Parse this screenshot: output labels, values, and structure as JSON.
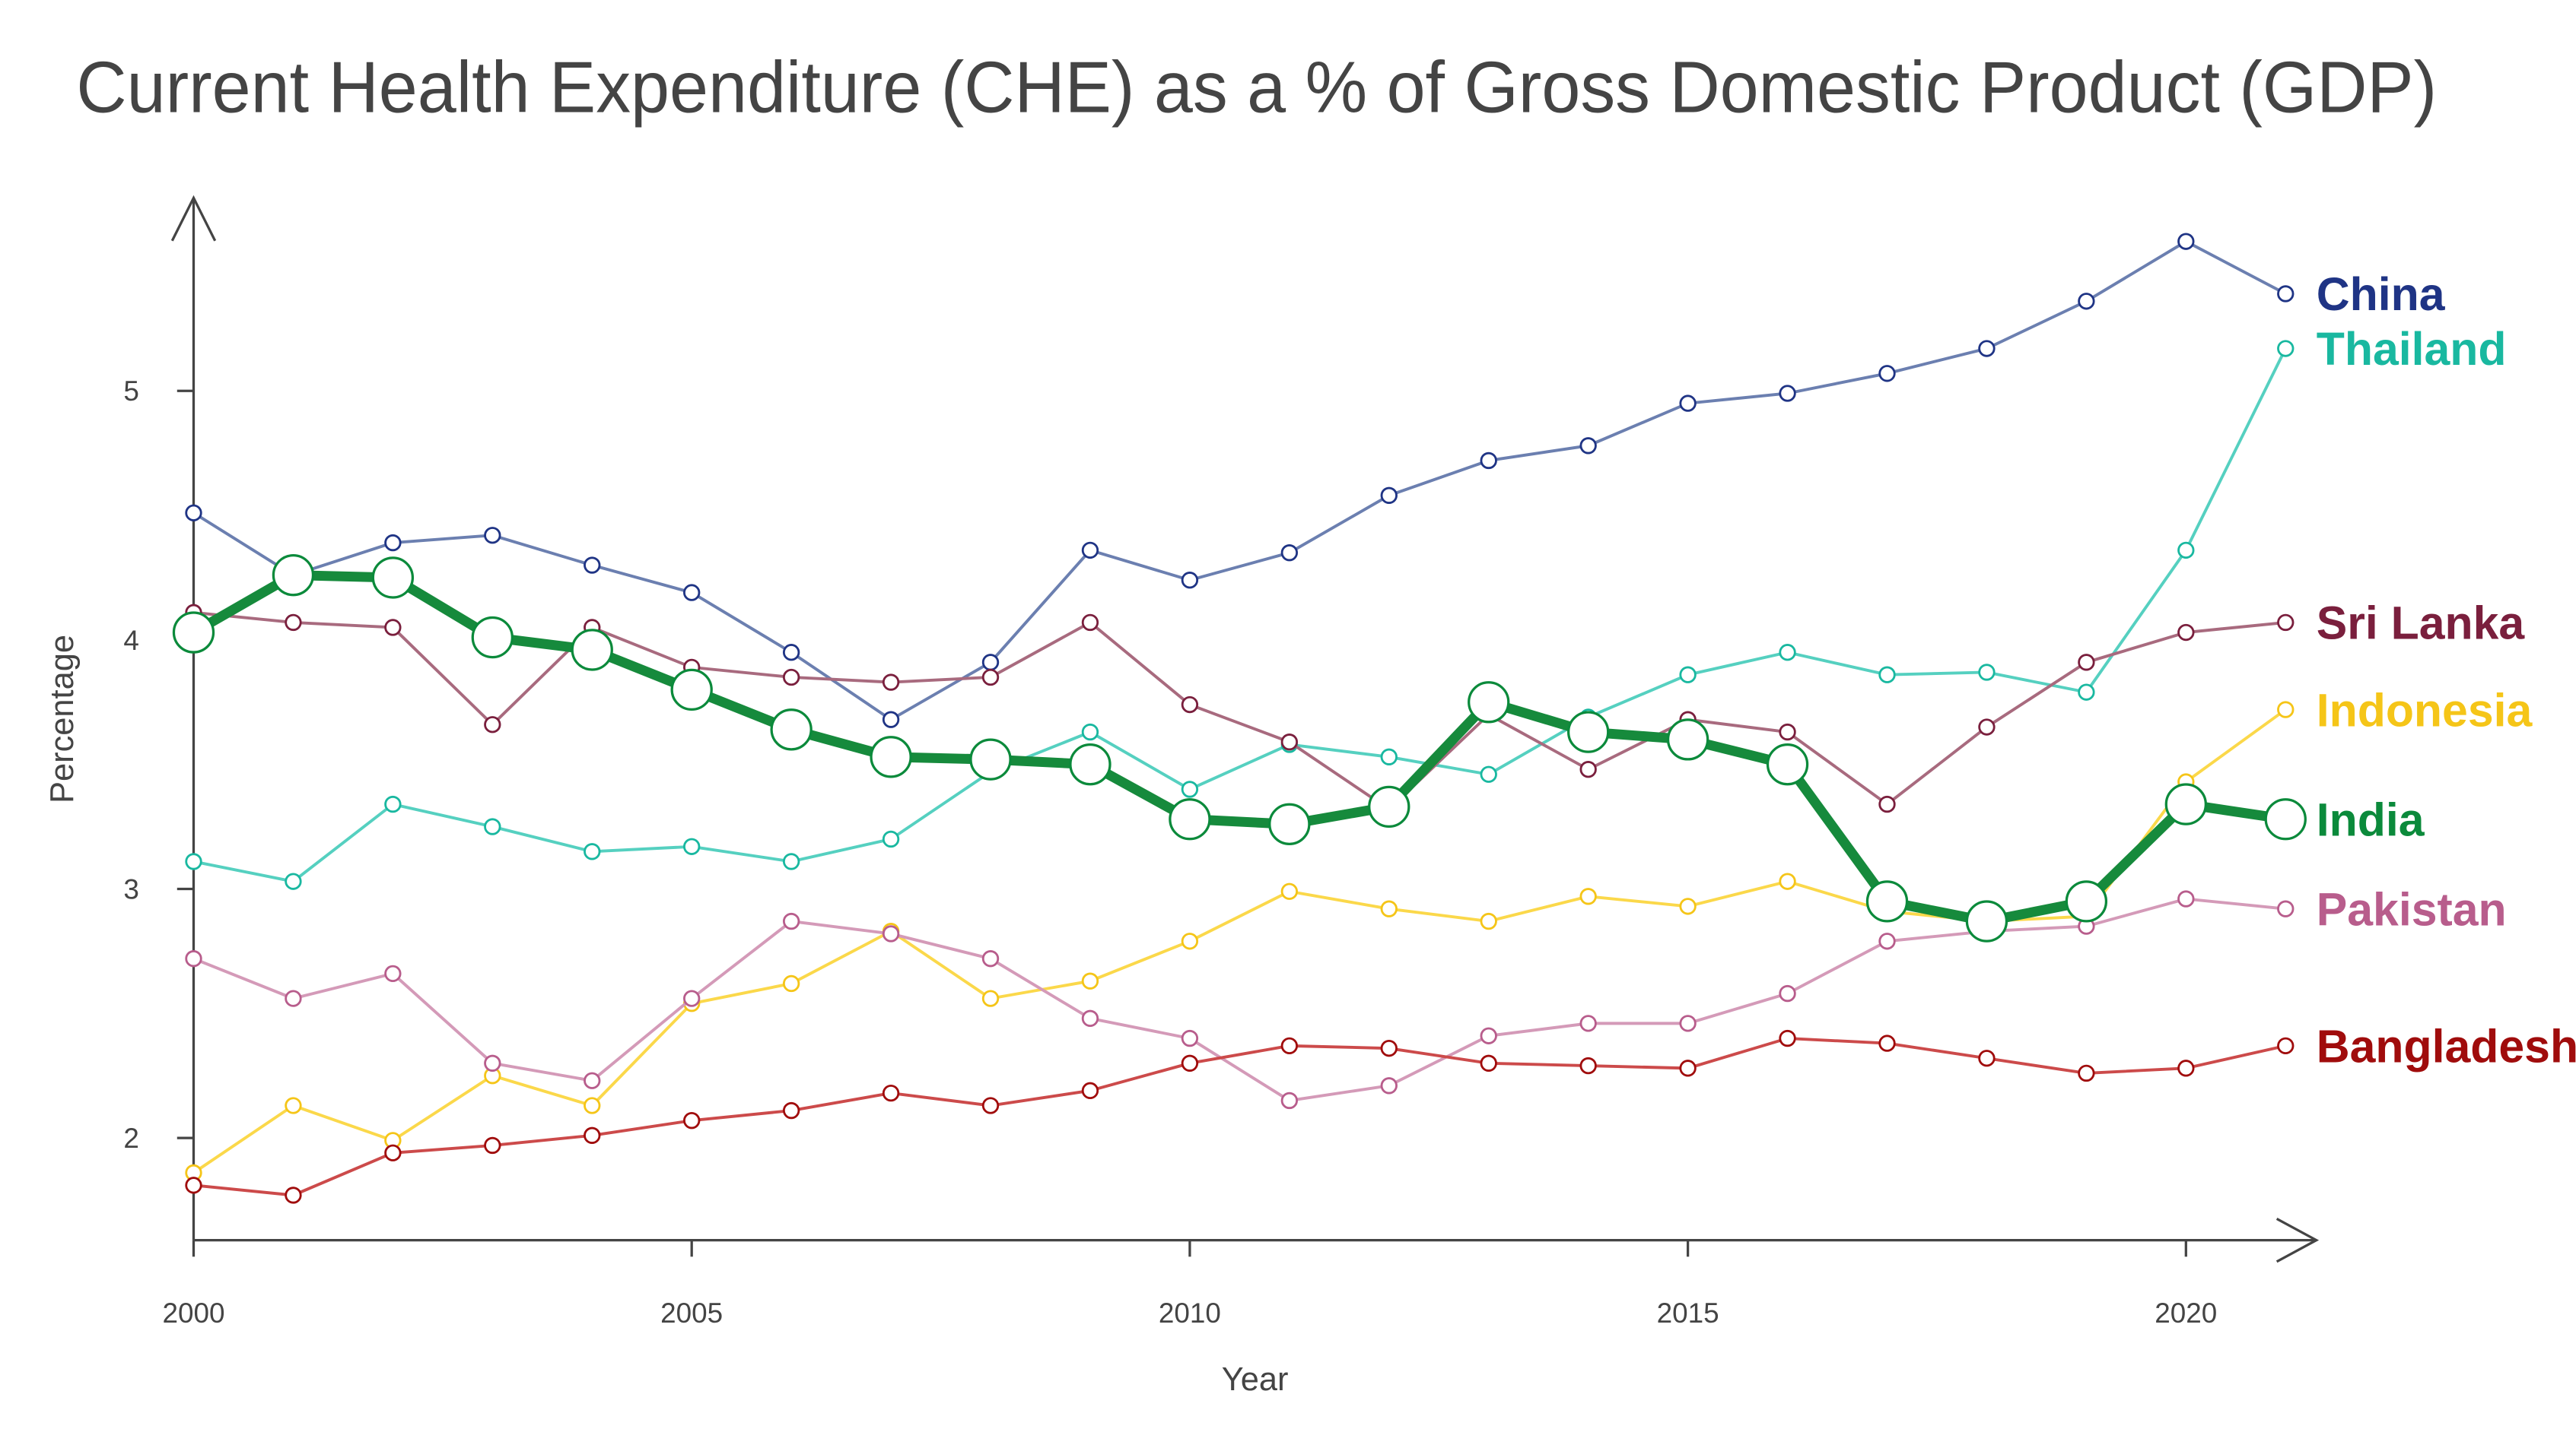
{
  "chart_data": {
    "type": "line",
    "title": "Current Health Expenditure (CHE) as a % of Gross Domestic Product (GDP)",
    "xlabel": "Year",
    "ylabel": "Percentage",
    "xlim": [
      2000,
      2021
    ],
    "ylim": [
      1.6,
      5.8
    ],
    "xticks": [
      2000,
      2005,
      2010,
      2015,
      2020
    ],
    "yticks": [
      2,
      3,
      4,
      5
    ],
    "grid": false,
    "legend": "direct labels at right end of lines",
    "x": [
      2000,
      2001,
      2002,
      2003,
      2004,
      2005,
      2006,
      2007,
      2008,
      2009,
      2010,
      2011,
      2012,
      2013,
      2014,
      2015,
      2016,
      2017,
      2018,
      2019,
      2020,
      2021
    ],
    "series": [
      {
        "name": "China",
        "color": "#1f3485",
        "line_color": "#6b7fb0",
        "highlight": false,
        "values": [
          4.51,
          4.26,
          4.39,
          4.42,
          4.3,
          4.19,
          3.95,
          3.68,
          3.91,
          4.36,
          4.24,
          4.35,
          4.58,
          4.72,
          4.78,
          4.95,
          4.99,
          5.07,
          5.17,
          5.36,
          5.6,
          5.39
        ]
      },
      {
        "name": "Thailand",
        "color": "#19b8a0",
        "line_color": "#55d0c0",
        "highlight": false,
        "values": [
          3.11,
          3.03,
          3.34,
          3.25,
          3.15,
          3.17,
          3.11,
          3.2,
          3.47,
          3.63,
          3.4,
          3.58,
          3.53,
          3.46,
          3.69,
          3.86,
          3.95,
          3.86,
          3.87,
          3.79,
          4.36,
          5.17
        ]
      },
      {
        "name": "Sri Lanka",
        "color": "#7a1f3d",
        "line_color": "#a86a7e",
        "highlight": false,
        "values": [
          4.11,
          4.07,
          4.05,
          3.66,
          4.05,
          3.89,
          3.85,
          3.83,
          3.85,
          4.07,
          3.74,
          3.59,
          3.32,
          3.7,
          3.48,
          3.68,
          3.63,
          3.34,
          3.65,
          3.91,
          4.03,
          4.07
        ]
      },
      {
        "name": "Indonesia",
        "color": "#f5c518",
        "line_color": "#fbd84a",
        "highlight": false,
        "values": [
          1.86,
          2.13,
          1.99,
          2.25,
          2.13,
          2.54,
          2.62,
          2.83,
          2.56,
          2.63,
          2.79,
          2.99,
          2.92,
          2.87,
          2.97,
          2.93,
          3.03,
          2.91,
          2.87,
          2.89,
          3.43,
          3.72
        ]
      },
      {
        "name": "India",
        "color": "#0b8a3b",
        "line_color": "#168a3c",
        "highlight": true,
        "values": [
          4.03,
          4.26,
          4.25,
          4.01,
          3.96,
          3.8,
          3.64,
          3.53,
          3.52,
          3.5,
          3.28,
          3.26,
          3.33,
          3.75,
          3.63,
          3.6,
          3.5,
          2.95,
          2.87,
          2.95,
          3.34,
          3.28
        ]
      },
      {
        "name": "Pakistan",
        "color": "#b85d8c",
        "line_color": "#d49ab8",
        "highlight": false,
        "values": [
          2.72,
          2.56,
          2.66,
          2.3,
          2.23,
          2.56,
          2.87,
          2.82,
          2.72,
          2.48,
          2.4,
          2.15,
          2.21,
          2.41,
          2.46,
          2.46,
          2.58,
          2.79,
          2.83,
          2.85,
          2.96,
          2.92
        ]
      },
      {
        "name": "Bangladesh",
        "color": "#a00c0c",
        "line_color": "#cc4a4a",
        "highlight": false,
        "values": [
          1.81,
          1.77,
          1.94,
          1.97,
          2.01,
          2.07,
          2.11,
          2.18,
          2.13,
          2.19,
          2.3,
          2.37,
          2.36,
          2.3,
          2.29,
          2.28,
          2.4,
          2.38,
          2.32,
          2.26,
          2.28,
          2.37
        ]
      }
    ]
  }
}
